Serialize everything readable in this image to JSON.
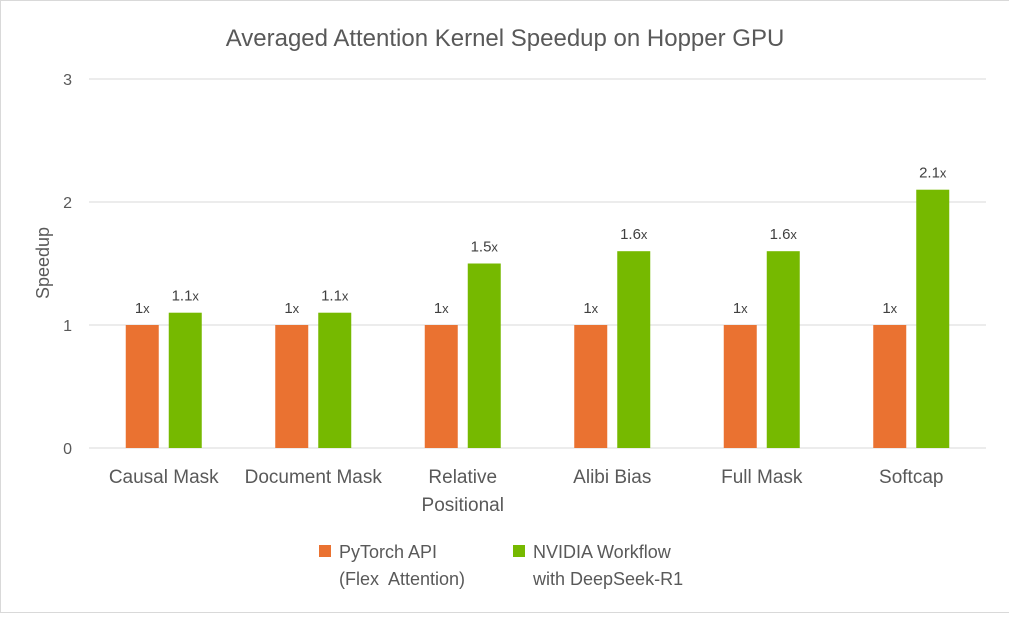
{
  "chart_data": {
    "type": "bar",
    "title": "Averaged Attention Kernel Speedup on Hopper GPU",
    "ylabel": "Speedup",
    "xlabel": "",
    "ylim": [
      0,
      3
    ],
    "yticks": [
      0,
      1,
      2,
      3
    ],
    "grid": true,
    "legend_position": "bottom",
    "categories": [
      [
        "Causal Mask"
      ],
      [
        "Document Mask"
      ],
      [
        "Relative",
        "Positional"
      ],
      [
        "Alibi Bias"
      ],
      [
        "Full Mask"
      ],
      [
        "Softcap"
      ]
    ],
    "series": [
      {
        "name": [
          "PyTorch API",
          "(Flex  Attention)"
        ],
        "color": "#ea7231",
        "values": [
          1,
          1,
          1,
          1,
          1,
          1
        ],
        "labels": [
          {
            "num": "1",
            "unit": "x"
          },
          {
            "num": "1",
            "unit": "x"
          },
          {
            "num": "1",
            "unit": "x"
          },
          {
            "num": "1",
            "unit": "x"
          },
          {
            "num": "1",
            "unit": "x"
          },
          {
            "num": "1",
            "unit": "x"
          }
        ]
      },
      {
        "name": [
          "NVIDIA Workflow",
          "with DeepSeek-R1"
        ],
        "color": "#76b900",
        "values": [
          1.1,
          1.1,
          1.5,
          1.6,
          1.6,
          2.1
        ],
        "labels": [
          {
            "num": "1.1",
            "unit": "x"
          },
          {
            "num": "1.1",
            "unit": "x"
          },
          {
            "num": "1.5",
            "unit": "x"
          },
          {
            "num": "1.6",
            "unit": "x"
          },
          {
            "num": "1.6",
            "unit": "x"
          },
          {
            "num": "2.1",
            "unit": "x"
          }
        ]
      }
    ]
  }
}
